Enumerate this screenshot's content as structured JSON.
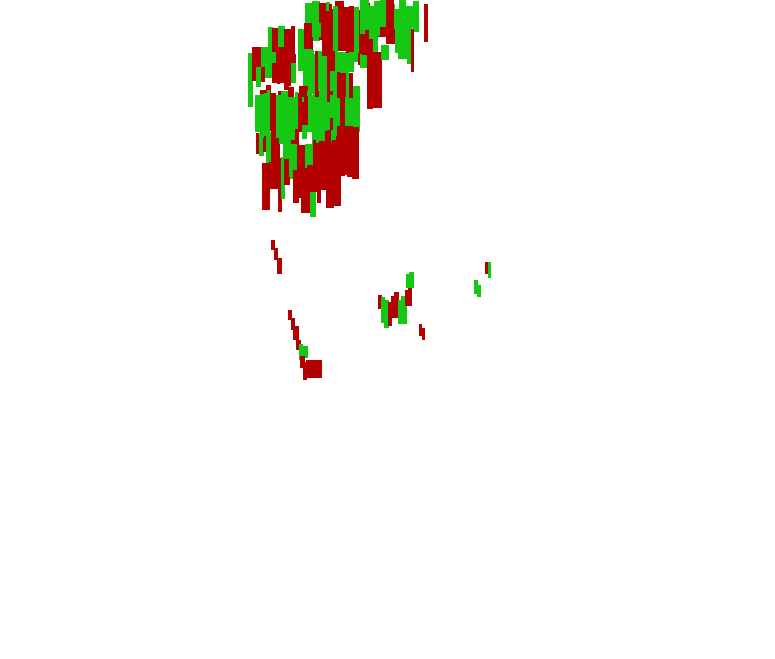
{
  "viewport": {
    "background": "#ffffff"
  },
  "colors": {
    "red": "#b30000",
    "green": "#14c814"
  }
}
